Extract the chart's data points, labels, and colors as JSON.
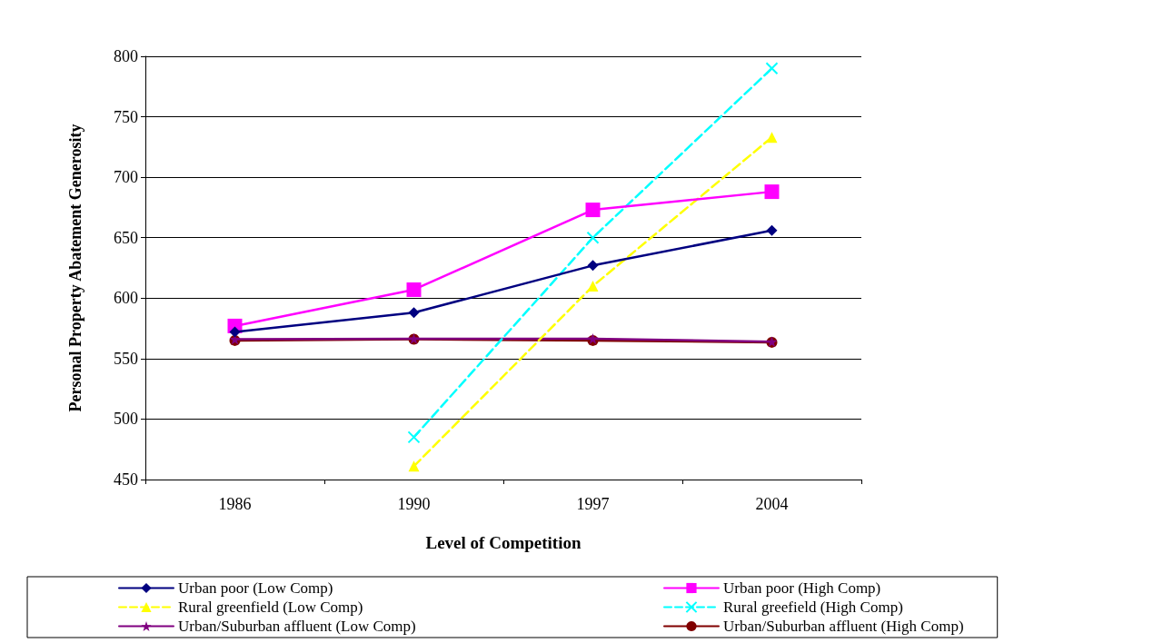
{
  "chart_data": {
    "type": "line",
    "xlabel": "Level of Competition",
    "ylabel": "Personal Property Abatement Generosity",
    "categories": [
      "1986",
      "1990",
      "1997",
      "2004"
    ],
    "ylim": [
      450,
      800
    ],
    "yticks": [
      450,
      500,
      550,
      600,
      650,
      700,
      750,
      800
    ],
    "grid": "y",
    "legend": "bottom",
    "series": [
      {
        "name": "Urban poor (Low Comp)",
        "color": "#000080",
        "marker": "diamond",
        "line_style": "solid",
        "values": [
          572,
          588,
          627,
          656
        ]
      },
      {
        "name": "Urban poor (High Comp)",
        "color": "#ff00ff",
        "marker": "square",
        "line_style": "solid",
        "values": [
          577,
          607,
          673,
          688
        ]
      },
      {
        "name": "Rural greenfield (Low Comp)",
        "color": "#ffff00",
        "marker": "triangle",
        "line_style": "dashed",
        "values": [
          null,
          461,
          610,
          733
        ]
      },
      {
        "name": "Rural greefield (High Comp)",
        "color": "#00ffff",
        "marker": "cross",
        "line_style": "dashed",
        "values": [
          null,
          485,
          650,
          790
        ]
      },
      {
        "name": "Urban/Suburban affluent (Low Comp)",
        "color": "#800080",
        "marker": "star",
        "line_style": "solid",
        "values": [
          566,
          566.5,
          566.5,
          564
        ]
      },
      {
        "name": "Urban/Suburban affluent (High Comp)",
        "color": "#800000",
        "marker": "circle",
        "line_style": "solid",
        "values": [
          565,
          566,
          565,
          563.5
        ]
      }
    ]
  }
}
